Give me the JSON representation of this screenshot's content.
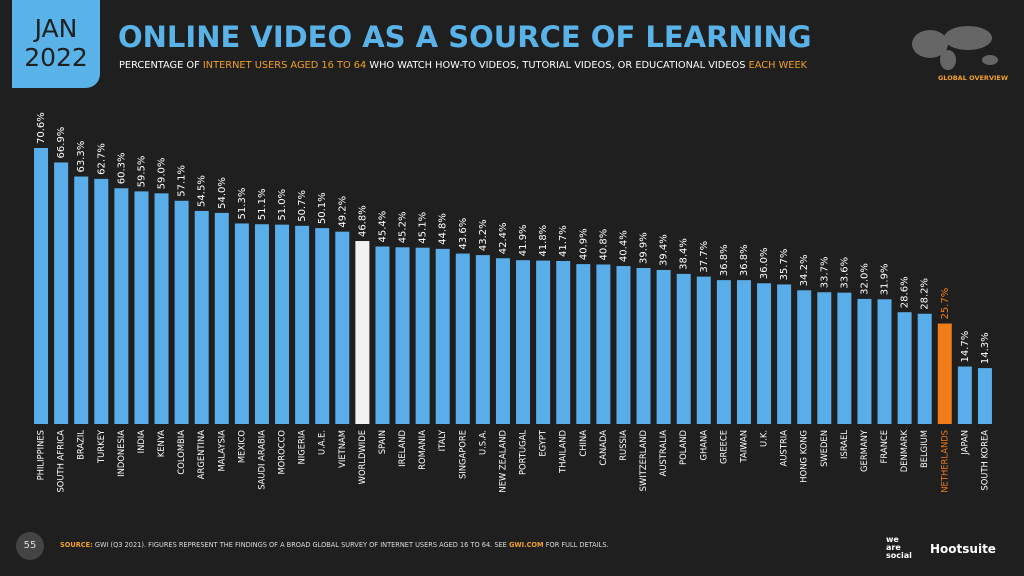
{
  "badge": {
    "month": "JAN",
    "year": "2022"
  },
  "chart_data": {
    "type": "bar",
    "title": "ONLINE VIDEO AS A SOURCE OF LEARNING",
    "subtitle": [
      "PERCENTAGE OF ",
      "INTERNET USERS AGED 16 TO 64",
      " WHO WATCH HOW-TO VIDEOS, TUTORIAL VIDEOS, OR EDUCATIONAL VIDEOS ",
      "EACH WEEK"
    ],
    "categories": [
      "PHILIPPINES",
      "SOUTH AFRICA",
      "BRAZIL",
      "TURKEY",
      "INDONESIA",
      "INDIA",
      "KENYA",
      "COLOMBIA",
      "ARGENTINA",
      "MALAYSIA",
      "MEXICO",
      "SAUDI ARABIA",
      "MOROCCO",
      "NIGERIA",
      "U.A.E.",
      "VIETNAM",
      "WORLDWIDE",
      "SPAIN",
      "IRELAND",
      "ROMANIA",
      "ITALY",
      "SINGAPORE",
      "U.S.A.",
      "NEW ZEALAND",
      "PORTUGAL",
      "EGYPT",
      "THAILAND",
      "CHINA",
      "CANADA",
      "RUSSIA",
      "SWITZERLAND",
      "AUSTRALIA",
      "POLAND",
      "GHANA",
      "GREECE",
      "TAIWAN",
      "U.K.",
      "AUSTRIA",
      "HONG KONG",
      "SWEDEN",
      "ISRAEL",
      "GERMANY",
      "FRANCE",
      "DENMARK",
      "BELGIUM",
      "NETHERLANDS",
      "JAPAN",
      "SOUTH KOREA"
    ],
    "values": [
      70.6,
      66.9,
      63.3,
      62.7,
      60.3,
      59.5,
      59.0,
      57.1,
      54.5,
      54.0,
      51.3,
      51.1,
      51.0,
      50.7,
      50.1,
      49.2,
      46.8,
      45.4,
      45.2,
      45.1,
      44.8,
      43.6,
      43.2,
      42.4,
      41.9,
      41.8,
      41.7,
      40.9,
      40.8,
      40.4,
      39.9,
      39.4,
      38.4,
      37.7,
      36.8,
      36.8,
      36.0,
      35.7,
      34.2,
      33.7,
      33.6,
      32.0,
      31.9,
      28.6,
      28.2,
      25.7,
      14.7,
      14.3
    ],
    "value_labels": [
      "70.6%",
      "66.9%",
      "63.3%",
      "62.7%",
      "60.3%",
      "59.5%",
      "59.0%",
      "57.1%",
      "54.5%",
      "54.0%",
      "51.3%",
      "51.1%",
      "51.0%",
      "50.7%",
      "50.1%",
      "49.2%",
      "46.8%",
      "45.4%",
      "45.2%",
      "45.1%",
      "44.8%",
      "43.6%",
      "43.2%",
      "42.4%",
      "41.9%",
      "41.8%",
      "41.7%",
      "40.9%",
      "40.8%",
      "40.4%",
      "39.9%",
      "39.4%",
      "38.4%",
      "37.7%",
      "36.8%",
      "36.8%",
      "36.0%",
      "35.7%",
      "34.2%",
      "33.7%",
      "33.6%",
      "32.0%",
      "31.9%",
      "28.6%",
      "28.2%",
      "25.7%",
      "14.7%",
      "14.3%"
    ],
    "color": "#59aeea",
    "highlights": {
      "16": "#f2f2f2",
      "45": "#f07d1a"
    }
  },
  "region": "GLOBAL OVERVIEW",
  "page_number": "55",
  "source": [
    "SOURCE:",
    " GWI (Q3 2021). FIGURES REPRESENT THE FINDINGS OF A BROAD GLOBAL SURVEY OF INTERNET USERS AGED 16 TO 64. SEE ",
    "GWI.COM",
    " FOR FULL DETAILS."
  ],
  "logos": {
    "we_are_social": [
      "we",
      "are",
      "social"
    ],
    "hootsuite": "Hootsuite"
  }
}
